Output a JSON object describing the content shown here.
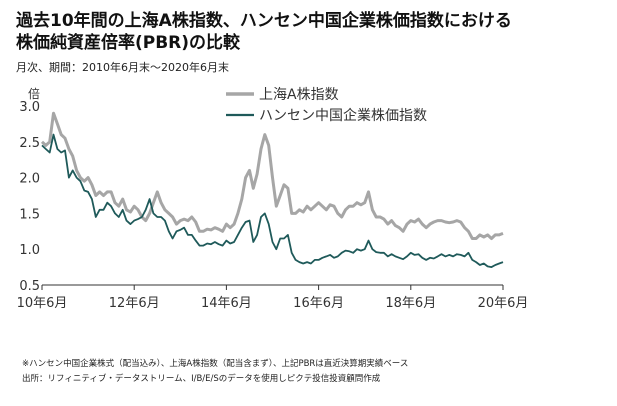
{
  "header": {
    "title_line1": "過去10年間の上海A株指数、ハンセン中国企業株価指数における",
    "title_line2": "株価純資産倍率(PBR)の比較",
    "subtitle": "月次、期間：2010年6月末～2020年6月末"
  },
  "footnotes": {
    "note1": "※ハンセン中国企業株式（配当込み）、上海A株指数（配当含まず）、上記PBRは直近決算期実績ベース",
    "note2": "出所：リフィニティブ・データストリーム、I/B/E/Sのデータを使用しピクテ投信投資顧問作成"
  },
  "chart_data": {
    "type": "line",
    "title": "過去10年間の上海A株指数、ハンセン中国企業株価指数における株価純資産倍率(PBR)の比較",
    "ylabel": "倍",
    "xlabel": "",
    "ylim": [
      0.5,
      3.0
    ],
    "yticks": [
      "0.5",
      "1.0",
      "1.5",
      "2.0",
      "2.5",
      "3.0"
    ],
    "yticks_values": [
      0.5,
      1.0,
      1.5,
      2.0,
      2.5,
      3.0
    ],
    "xticks": [
      "10年6月",
      "12年6月",
      "14年6月",
      "16年6月",
      "18年6月",
      "20年6月"
    ],
    "xlim": [
      "2010-06",
      "2020-06"
    ],
    "x_start": "2010-06",
    "x_end": "2020-06",
    "legend_position": "top-center",
    "grid": false,
    "series": [
      {
        "name": "上海A株指数",
        "color": "#a6a6a6",
        "values": [
          2.5,
          2.45,
          2.5,
          2.9,
          2.75,
          2.6,
          2.55,
          2.4,
          2.3,
          2.1,
          2.0,
          1.95,
          2.0,
          1.9,
          1.75,
          1.8,
          1.75,
          1.8,
          1.8,
          1.65,
          1.6,
          1.7,
          1.55,
          1.52,
          1.6,
          1.55,
          1.45,
          1.4,
          1.5,
          1.65,
          1.8,
          1.65,
          1.55,
          1.5,
          1.45,
          1.35,
          1.4,
          1.42,
          1.4,
          1.45,
          1.38,
          1.25,
          1.25,
          1.28,
          1.27,
          1.3,
          1.28,
          1.25,
          1.35,
          1.3,
          1.35,
          1.5,
          1.7,
          2.0,
          2.1,
          1.85,
          2.05,
          2.4,
          2.6,
          2.45,
          2.0,
          1.6,
          1.75,
          1.9,
          1.85,
          1.5,
          1.5,
          1.55,
          1.52,
          1.6,
          1.55,
          1.6,
          1.65,
          1.6,
          1.55,
          1.62,
          1.6,
          1.5,
          1.45,
          1.55,
          1.6,
          1.6,
          1.65,
          1.62,
          1.65,
          1.8,
          1.55,
          1.45,
          1.45,
          1.42,
          1.35,
          1.4,
          1.33,
          1.3,
          1.25,
          1.35,
          1.4,
          1.38,
          1.42,
          1.35,
          1.3,
          1.35,
          1.38,
          1.4,
          1.4,
          1.38,
          1.37,
          1.38,
          1.4,
          1.38,
          1.3,
          1.25,
          1.15,
          1.15,
          1.2,
          1.17,
          1.2,
          1.15,
          1.2,
          1.2,
          1.22
        ]
      },
      {
        "name": "ハンセン中国企業株価指数",
        "color": "#1f5a5a",
        "values": [
          2.45,
          2.4,
          2.35,
          2.6,
          2.4,
          2.35,
          2.38,
          2.0,
          2.1,
          2.0,
          1.95,
          1.82,
          1.8,
          1.7,
          1.45,
          1.55,
          1.55,
          1.65,
          1.6,
          1.5,
          1.45,
          1.55,
          1.4,
          1.35,
          1.4,
          1.42,
          1.45,
          1.55,
          1.7,
          1.5,
          1.45,
          1.45,
          1.4,
          1.25,
          1.15,
          1.25,
          1.27,
          1.3,
          1.2,
          1.2,
          1.12,
          1.05,
          1.05,
          1.08,
          1.07,
          1.1,
          1.07,
          1.05,
          1.12,
          1.08,
          1.1,
          1.2,
          1.3,
          1.38,
          1.4,
          1.1,
          1.2,
          1.45,
          1.5,
          1.35,
          1.1,
          1.0,
          1.15,
          1.15,
          1.2,
          0.95,
          0.85,
          0.82,
          0.8,
          0.82,
          0.8,
          0.85,
          0.85,
          0.88,
          0.9,
          0.92,
          0.88,
          0.9,
          0.95,
          0.98,
          0.97,
          0.95,
          1.0,
          0.98,
          1.0,
          1.12,
          1.0,
          0.96,
          0.95,
          0.95,
          0.9,
          0.93,
          0.9,
          0.88,
          0.86,
          0.9,
          0.95,
          0.92,
          0.93,
          0.88,
          0.85,
          0.88,
          0.87,
          0.9,
          0.93,
          0.9,
          0.92,
          0.9,
          0.93,
          0.92,
          0.9,
          0.95,
          0.85,
          0.82,
          0.78,
          0.8,
          0.76,
          0.75,
          0.78,
          0.8,
          0.82
        ]
      }
    ]
  }
}
